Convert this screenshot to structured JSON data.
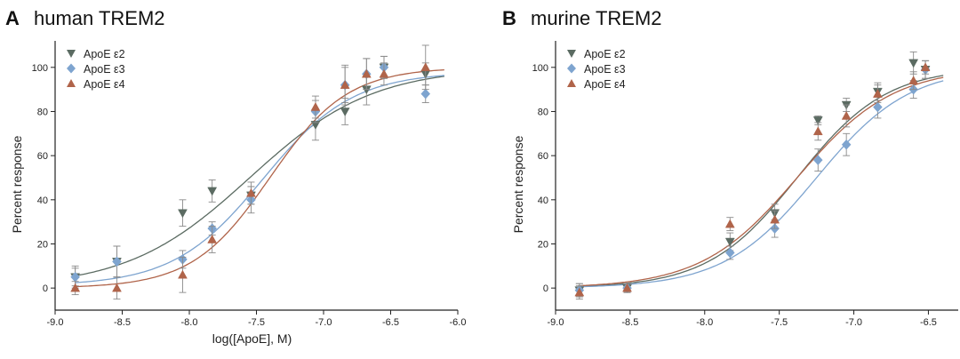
{
  "chart_data": [
    {
      "type": "scatter",
      "panel_letter": "A",
      "title": "human TREM2",
      "xlabel": "log([ApoE], M)",
      "ylabel": "Percent response",
      "xlim": [
        -9.0,
        -6.0
      ],
      "ylim": [
        -10,
        112
      ],
      "x_ticks": [
        "-9.0",
        "-8.5",
        "-8.0",
        "-7.5",
        "-7.0",
        "-6.5",
        "-6.0"
      ],
      "y_ticks": [
        "0",
        "20",
        "40",
        "60",
        "80",
        "100"
      ],
      "legend_position": "top-left",
      "series": [
        {
          "name": "ApoE ε2",
          "color": "#5b6b62",
          "marker": "triangle-down",
          "x": [
            -8.85,
            -8.54,
            -8.05,
            -7.83,
            -7.54,
            -7.06,
            -6.84,
            -6.68,
            -6.55,
            -6.24
          ],
          "y": [
            5,
            12,
            34,
            44,
            42,
            74,
            80,
            90,
            100,
            97
          ],
          "err": [
            4,
            7,
            6,
            5,
            4,
            7,
            6,
            7,
            5,
            5
          ],
          "fit": {
            "bottom": 0,
            "top": 100,
            "logEC50": -7.55,
            "hill": 0.95
          }
        },
        {
          "name": "ApoE ε3",
          "color": "#7ea4cf",
          "marker": "diamond",
          "x": [
            -8.85,
            -8.54,
            -8.05,
            -7.83,
            -7.54,
            -7.06,
            -6.84,
            -6.68,
            -6.55,
            -6.24
          ],
          "y": [
            5,
            12,
            13,
            27,
            40,
            80,
            92,
            97,
            100,
            88
          ],
          "err": [
            5,
            7,
            4,
            3,
            6,
            5,
            8,
            7,
            5,
            4
          ],
          "fit": {
            "bottom": 1,
            "top": 98,
            "logEC50": -7.45,
            "hill": 1.3
          }
        },
        {
          "name": "ApoE ε4",
          "color": "#b0644a",
          "marker": "triangle-up",
          "x": [
            -8.85,
            -8.54,
            -8.05,
            -7.83,
            -7.54,
            -7.06,
            -6.84,
            -6.68,
            -6.55,
            -6.24
          ],
          "y": [
            0,
            0,
            6,
            22,
            43,
            82,
            92,
            97,
            97,
            100
          ],
          "err": [
            3,
            5,
            8,
            6,
            5,
            5,
            9,
            7,
            5,
            10
          ],
          "fit": {
            "bottom": 0,
            "top": 100,
            "logEC50": -7.4,
            "hill": 1.5
          }
        }
      ]
    },
    {
      "type": "scatter",
      "panel_letter": "B",
      "title": "murine TREM2",
      "xlabel": "",
      "ylabel": "Percent response",
      "xlim": [
        -9.0,
        -6.3
      ],
      "ylim": [
        -10,
        112
      ],
      "x_ticks": [
        "-9.0",
        "-8.5",
        "-8.0",
        "-7.5",
        "-7.0",
        "-6.5"
      ],
      "y_ticks": [
        "0",
        "20",
        "40",
        "60",
        "80",
        "100"
      ],
      "legend_position": "top-left",
      "series": [
        {
          "name": "ApoE ε2",
          "color": "#5b6b62",
          "marker": "triangle-down",
          "x": [
            -8.84,
            -8.52,
            -7.83,
            -7.53,
            -7.24,
            -7.05,
            -6.84,
            -6.6,
            -6.52
          ],
          "y": [
            -1,
            0,
            21,
            34,
            76,
            83,
            89,
            102,
            99
          ],
          "err": [
            3,
            2,
            4,
            4,
            2,
            3,
            4,
            5,
            4
          ],
          "fit": {
            "bottom": 0,
            "top": 100,
            "logEC50": -7.38,
            "hill": 1.45
          }
        },
        {
          "name": "ApoE ε3",
          "color": "#7ea4cf",
          "marker": "diamond",
          "x": [
            -8.84,
            -8.52,
            -7.83,
            -7.53,
            -7.24,
            -7.05,
            -6.84,
            -6.6,
            -6.52
          ],
          "y": [
            -1,
            0,
            16,
            27,
            58,
            65,
            82,
            90,
            99
          ],
          "err": [
            3,
            2,
            3,
            4,
            5,
            5,
            5,
            4,
            4
          ],
          "fit": {
            "bottom": 0,
            "top": 100,
            "logEC50": -7.25,
            "hill": 1.4
          }
        },
        {
          "name": "ApoE ε4",
          "color": "#b0644a",
          "marker": "triangle-up",
          "x": [
            -8.84,
            -8.52,
            -7.83,
            -7.53,
            -7.24,
            -7.05,
            -6.84,
            -6.6,
            -6.52
          ],
          "y": [
            -2,
            0,
            29,
            31,
            71,
            78,
            88,
            94,
            100
          ],
          "err": [
            3,
            2,
            3,
            4,
            4,
            5,
            4,
            4,
            3
          ],
          "fit": {
            "bottom": 0,
            "top": 100,
            "logEC50": -7.38,
            "hill": 1.35
          }
        }
      ]
    }
  ]
}
